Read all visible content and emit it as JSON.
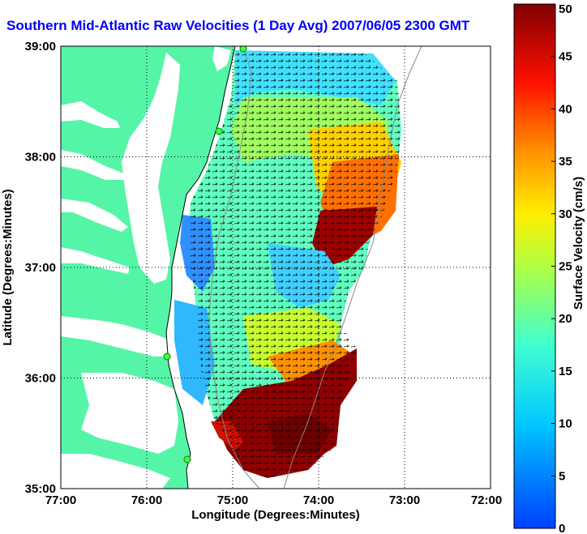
{
  "title": "Southern Mid-Atlantic Raw Velocities (1 Day Avg) 2007/06/05 2300 GMT",
  "map": {
    "xlabel": "Longitude (Degrees:Minutes)",
    "ylabel": "Latitude (Degrees:Minutes)",
    "x_ticks": [
      "77:00",
      "76:00",
      "75:00",
      "74:00",
      "73:00",
      "72:00"
    ],
    "y_ticks": [
      "39:00",
      "38:00",
      "37:00",
      "36:00",
      "35:00"
    ],
    "xlim": [
      -77,
      -72
    ],
    "ylim": [
      35,
      39
    ],
    "grid": "dotted",
    "land_color": "#55f5a8"
  },
  "colorbar": {
    "label": "Surface Velocity (cm/s)",
    "ticks": [
      "50",
      "45",
      "40",
      "35",
      "30",
      "25",
      "20",
      "15",
      "10",
      "5",
      "0"
    ],
    "range": [
      0,
      50
    ],
    "colormap": "jet"
  }
}
